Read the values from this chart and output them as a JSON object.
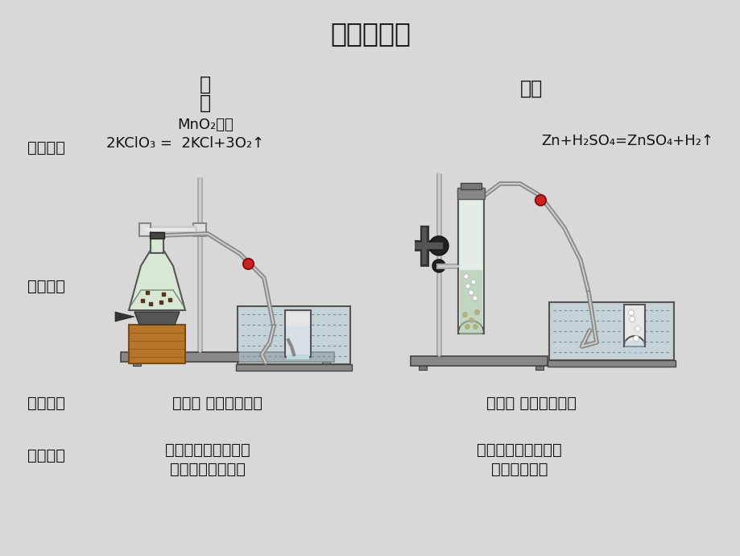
{
  "title": "气体的制取",
  "bg_color": "#d8d8d8",
  "title_fontsize": 24,
  "text_color": "#111111",
  "col1_header_line1": "氧",
  "col1_header_line2": "气",
  "col2_header": "氢气",
  "row_labels": [
    "反应原理",
    "发生装置",
    "收集方法",
    "检验方法"
  ],
  "col1_mno2": "MnO₂加热",
  "col1_eq": "2KClO₃ =  2KCl+3O₂↑",
  "col2_eq": "Zn+H₂SO₄=ZnSO₄+H₂↑",
  "col1_collection": "排水法 向上排空气法",
  "col2_collection": "排水法 向下排空气法",
  "col1_detection_1": "将带火星的木条伸入",
  "col1_detection_2": "集气瓶，木条复燃",
  "col2_detection_1": "点燃，检验燃烧产物",
  "col2_detection_2": "是否只生成水"
}
